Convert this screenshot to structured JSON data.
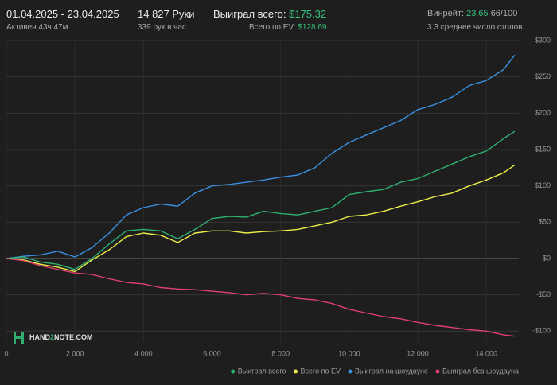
{
  "header": {
    "dates": "01.04.2025 - 23.04.2025",
    "active": "Активен 43ч 47м",
    "hands": "14 827 Руки",
    "hands_per_hour": "339 рук в час",
    "won_label": "Выиграл всего:",
    "won_value": "$175.32",
    "ev_label": "Всего по EV:",
    "ev_value": "$128.69",
    "winrate_label": "Винрейт:",
    "winrate_value": "23.65",
    "winrate_unit": "66/100",
    "tables": "3.3 среднее число столов",
    "logo": [
      "HAND",
      "2",
      "NOTE.COM"
    ]
  },
  "chart_data": {
    "type": "line",
    "x": [
      0,
      500,
      1000,
      1500,
      2000,
      2500,
      3000,
      3500,
      4000,
      4500,
      5000,
      5500,
      6000,
      6500,
      7000,
      7500,
      8000,
      8500,
      9000,
      9500,
      10000,
      10500,
      11000,
      11500,
      12000,
      12500,
      13000,
      13500,
      14000,
      14500,
      14827
    ],
    "series": [
      {
        "name": "Выиграл всего",
        "color": "#2fb070",
        "values": [
          0,
          2,
          -5,
          -8,
          -15,
          0,
          20,
          38,
          40,
          38,
          27,
          40,
          55,
          58,
          57,
          65,
          62,
          60,
          65,
          70,
          88,
          92,
          95,
          105,
          110,
          120,
          130,
          140,
          148,
          165,
          175
        ]
      },
      {
        "name": "Всего по EV",
        "color": "#eded4a",
        "values": [
          0,
          -2,
          -8,
          -12,
          -18,
          -2,
          12,
          30,
          35,
          32,
          22,
          35,
          38,
          38,
          35,
          37,
          38,
          40,
          45,
          50,
          58,
          60,
          65,
          72,
          78,
          85,
          90,
          100,
          108,
          118,
          128.69
        ]
      },
      {
        "name": "Выиграл на шоудауне",
        "color": "#3b8fe0",
        "values": [
          0,
          3,
          5,
          10,
          2,
          15,
          35,
          60,
          70,
          75,
          72,
          90,
          100,
          102,
          105,
          108,
          112,
          115,
          125,
          145,
          160,
          170,
          180,
          190,
          205,
          212,
          222,
          238,
          245,
          260,
          280
        ]
      },
      {
        "name": "Выиграл без шоудауна",
        "color": "#e0406c",
        "values": [
          0,
          -3,
          -10,
          -15,
          -20,
          -22,
          -28,
          -33,
          -35,
          -40,
          -42,
          -43,
          -45,
          -47,
          -50,
          -48,
          -50,
          -55,
          -57,
          -62,
          -70,
          -75,
          -80,
          -83,
          -88,
          -92,
          -95,
          -98,
          -100,
          -105,
          -107
        ]
      }
    ],
    "xlim": [
      0,
      14900
    ],
    "xticks": [
      0,
      {
        "value": 2000,
        "label": "2 000"
      },
      {
        "value": 4000,
        "label": "4 000"
      },
      {
        "value": 6000,
        "label": "6 000"
      },
      {
        "value": 8000,
        "label": "8 000"
      },
      {
        "value": 10000,
        "label": "10 000"
      },
      {
        "value": 12000,
        "label": "12 000"
      },
      {
        "value": 14000,
        "label": "14 000"
      }
    ],
    "ylim": [
      -115,
      300
    ],
    "yticks": [
      {
        "value": -100,
        "label": "-$100"
      },
      {
        "value": -50,
        "label": "-$50"
      },
      {
        "value": 0,
        "label": "$0"
      },
      {
        "value": 50,
        "label": "$50"
      },
      {
        "value": 100,
        "label": "$100"
      },
      {
        "value": 150,
        "label": "$150"
      },
      {
        "value": 200,
        "label": "$200"
      },
      {
        "value": 250,
        "label": "$250"
      },
      {
        "value": 300,
        "label": "$300"
      }
    ],
    "grid": true,
    "legend": "bottom-right"
  }
}
